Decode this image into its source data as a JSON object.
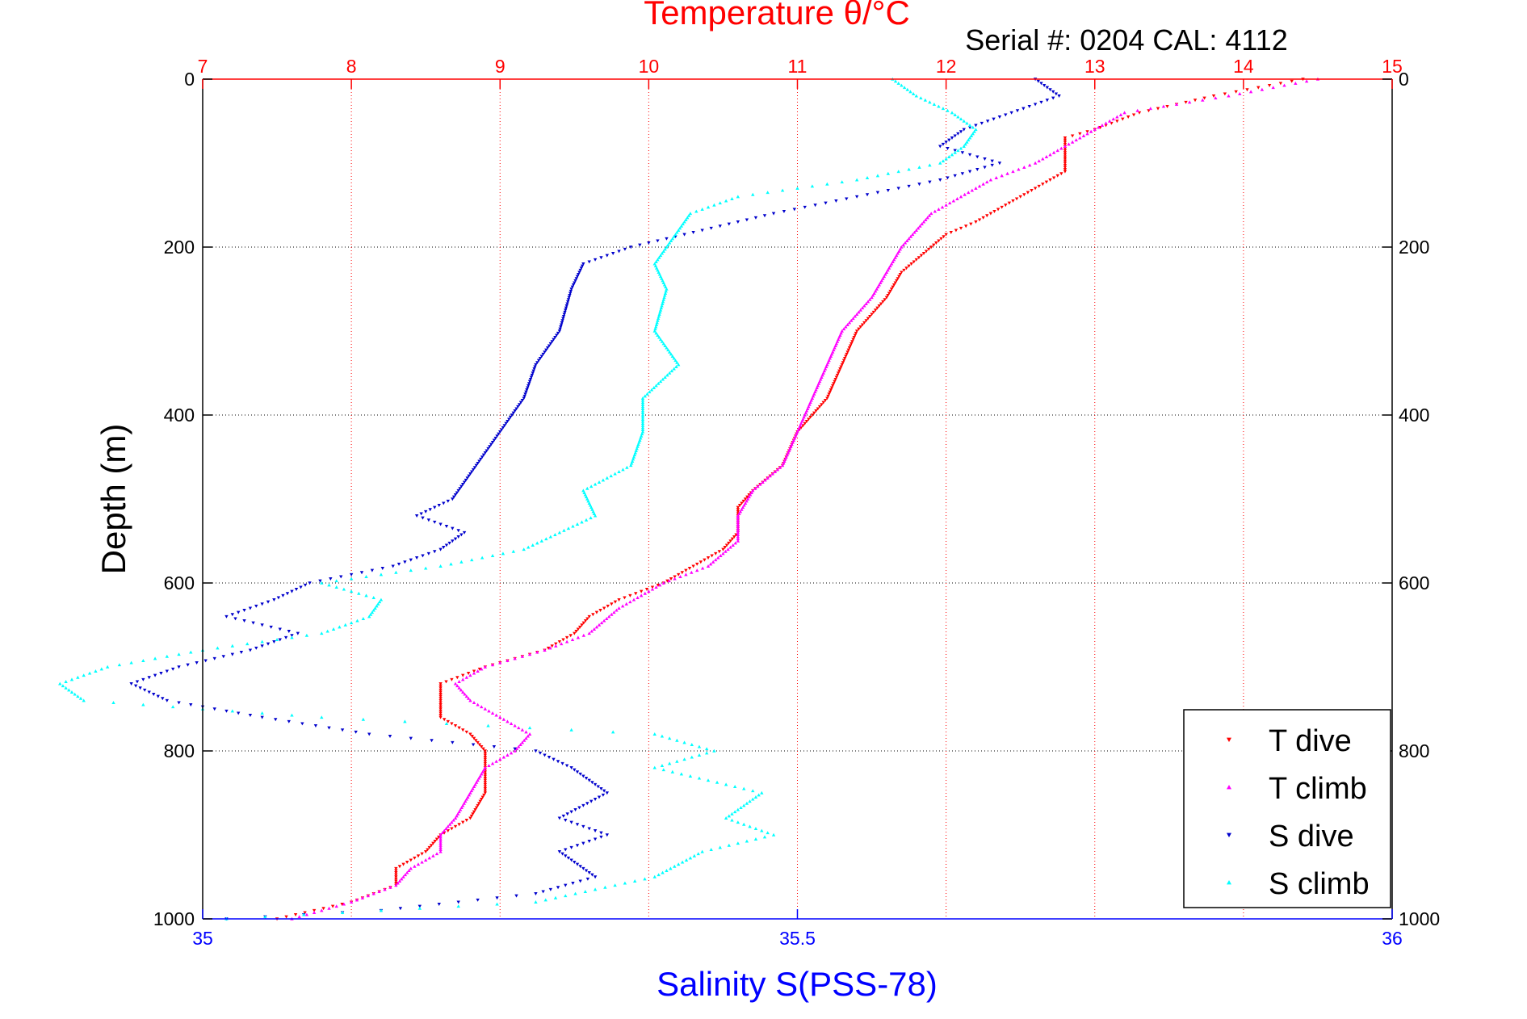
{
  "chart_data": {
    "type": "scatter",
    "title": "Temperature θ/°C",
    "subtitle": "Serial #: 0204  CAL: 4112",
    "ylabel": "Depth (m)",
    "xlabel_top": "Temperature θ/°C",
    "xlabel_bottom": "Salinity S(PSS-78)",
    "y_axis": {
      "range": [
        0,
        1000
      ],
      "reversed": true,
      "ticks": [
        "0",
        "200",
        "400",
        "600",
        "800",
        "1000"
      ],
      "tick_values": [
        0,
        200,
        400,
        600,
        800,
        1000
      ]
    },
    "x_top_axis": {
      "range": [
        7,
        15
      ],
      "ticks": [
        "7",
        "8",
        "9",
        "10",
        "11",
        "12",
        "13",
        "14",
        "15"
      ],
      "tick_values": [
        7,
        8,
        9,
        10,
        11,
        12,
        13,
        14,
        15
      ],
      "color": "#ff0000"
    },
    "x_bottom_axis": {
      "range": [
        35,
        36
      ],
      "ticks": [
        "35",
        "35.5",
        "36"
      ],
      "tick_values": [
        35,
        35.5,
        36
      ],
      "color": "#0000ff"
    },
    "grid": true,
    "legend_placement": "bottom-right",
    "series": [
      {
        "name": "T dive",
        "axis": "top",
        "marker": "triangle-down",
        "color": "#ff0000",
        "depth": [
          0,
          20,
          40,
          60,
          70,
          90,
          110,
          130,
          150,
          170,
          185,
          200,
          230,
          260,
          300,
          340,
          380,
          420,
          460,
          490,
          510,
          540,
          560,
          580,
          600,
          620,
          640,
          660,
          680,
          700,
          720,
          740,
          760,
          780,
          800,
          820,
          850,
          880,
          900,
          920,
          940,
          960,
          980,
          1000
        ],
        "values": [
          14.4,
          13.8,
          13.3,
          13.0,
          12.8,
          12.8,
          12.8,
          12.6,
          12.4,
          12.2,
          12.0,
          11.9,
          11.7,
          11.6,
          11.4,
          11.3,
          11.2,
          11.0,
          10.9,
          10.7,
          10.6,
          10.6,
          10.5,
          10.3,
          10.1,
          9.8,
          9.6,
          9.5,
          9.3,
          8.9,
          8.6,
          8.6,
          8.6,
          8.8,
          8.9,
          8.9,
          8.9,
          8.8,
          8.6,
          8.5,
          8.3,
          8.3,
          8.0,
          7.5
        ]
      },
      {
        "name": "T climb",
        "axis": "top",
        "marker": "triangle-up",
        "color": "#ff00ff",
        "depth": [
          0,
          20,
          40,
          60,
          80,
          100,
          120,
          140,
          160,
          180,
          200,
          230,
          260,
          300,
          340,
          380,
          420,
          460,
          490,
          520,
          550,
          580,
          600,
          630,
          660,
          680,
          700,
          720,
          740,
          760,
          780,
          800,
          820,
          850,
          880,
          900,
          920,
          940,
          960,
          980,
          1000
        ],
        "values": [
          14.5,
          13.9,
          13.2,
          13.0,
          12.8,
          12.6,
          12.3,
          12.1,
          11.9,
          11.8,
          11.7,
          11.6,
          11.5,
          11.3,
          11.2,
          11.1,
          11.0,
          10.9,
          10.7,
          10.6,
          10.6,
          10.4,
          10.1,
          9.8,
          9.6,
          9.3,
          8.9,
          8.7,
          8.8,
          9.0,
          9.2,
          9.1,
          8.9,
          8.8,
          8.7,
          8.6,
          8.6,
          8.4,
          8.3,
          8.0,
          7.6
        ]
      },
      {
        "name": "S dive",
        "axis": "bottom",
        "marker": "triangle-down",
        "color": "#0000cc",
        "depth": [
          0,
          20,
          40,
          60,
          80,
          100,
          120,
          140,
          160,
          180,
          200,
          220,
          250,
          300,
          340,
          380,
          420,
          460,
          500,
          520,
          540,
          560,
          580,
          600,
          620,
          640,
          660,
          680,
          700,
          720,
          740,
          760,
          780,
          800,
          820,
          850,
          880,
          900,
          920,
          950,
          970,
          990,
          1000
        ],
        "values": [
          35.7,
          35.72,
          35.68,
          35.64,
          35.62,
          35.67,
          35.62,
          35.55,
          35.48,
          35.42,
          35.36,
          35.32,
          35.31,
          35.3,
          35.28,
          35.27,
          35.25,
          35.23,
          35.21,
          35.18,
          35.22,
          35.2,
          35.16,
          35.09,
          35.06,
          35.02,
          35.08,
          35.04,
          34.98,
          34.94,
          34.97,
          35.05,
          35.14,
          35.28,
          35.31,
          35.34,
          35.3,
          35.34,
          35.3,
          35.33,
          35.28,
          35.15,
          35.02
        ]
      },
      {
        "name": "S climb",
        "axis": "bottom",
        "marker": "triangle-up",
        "color": "#00ffff",
        "depth": [
          0,
          20,
          40,
          60,
          80,
          100,
          120,
          140,
          160,
          180,
          200,
          220,
          250,
          300,
          340,
          380,
          420,
          460,
          490,
          520,
          540,
          560,
          580,
          600,
          620,
          640,
          660,
          680,
          700,
          720,
          740,
          760,
          780,
          800,
          820,
          850,
          880,
          900,
          920,
          950,
          980,
          1000
        ],
        "values": [
          35.58,
          35.6,
          35.63,
          35.65,
          35.64,
          35.62,
          35.55,
          35.45,
          35.41,
          35.4,
          35.39,
          35.38,
          35.39,
          35.38,
          35.4,
          35.37,
          35.37,
          35.36,
          35.32,
          35.33,
          35.3,
          35.27,
          35.2,
          35.1,
          35.15,
          35.14,
          35.1,
          35.0,
          34.92,
          34.88,
          34.9,
          35.1,
          35.38,
          35.43,
          35.38,
          35.47,
          35.44,
          35.48,
          35.42,
          35.38,
          35.28,
          35.02
        ]
      }
    ]
  }
}
